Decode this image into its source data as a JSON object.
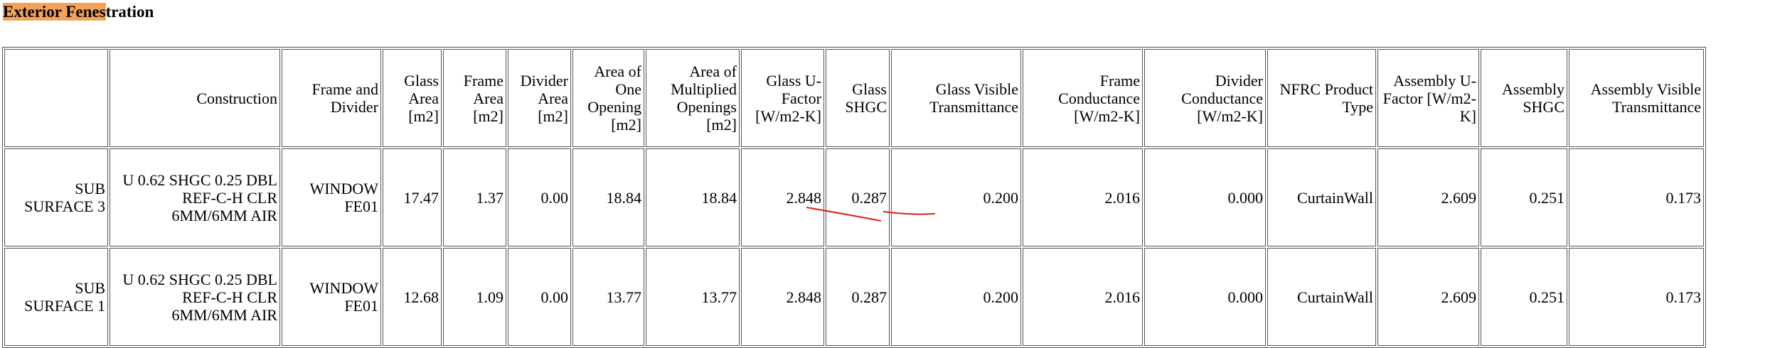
{
  "title_highlight": "Exterior Fenes",
  "title_rest": "tration",
  "table": {
    "headers": [
      "Construction",
      "Frame and Divider",
      "Glass Area [m2]",
      "Frame Area [m2]",
      "Divider Area [m2]",
      "Area of One Opening [m2]",
      "Area of Multiplied Openings [m2]",
      "Glass U-Factor [W/m2-K]",
      "Glass SHGC",
      "Glass Visible Transmittance",
      "Frame Conductance [W/m2-K]",
      "Divider Conductance [W/m2-K]",
      "NFRC Product Type",
      "Assembly U-Factor [W/m2-K]",
      "Assembly SHGC",
      "Assembly Visible Transmittance"
    ],
    "rows": [
      [
        "SUB SURFACE 3",
        "U 0.62 SHGC 0.25 DBL REF-C-H CLR 6MM/6MM AIR",
        "WINDOW FE01",
        "17.47",
        "1.37",
        "0.00",
        "18.84",
        "18.84",
        "2.848",
        "0.287",
        "0.200",
        "2.016",
        "0.000",
        "CurtainWall",
        "2.609",
        "0.251",
        "0.173"
      ],
      [
        "SUB SURFACE 1",
        "U 0.62 SHGC 0.25 DBL REF-C-H CLR 6MM/6MM AIR",
        "WINDOW FE01",
        "12.68",
        "1.09",
        "0.00",
        "13.77",
        "13.77",
        "2.848",
        "0.287",
        "0.200",
        "2.016",
        "0.000",
        "CurtainWall",
        "2.609",
        "0.251",
        "0.173"
      ]
    ]
  }
}
